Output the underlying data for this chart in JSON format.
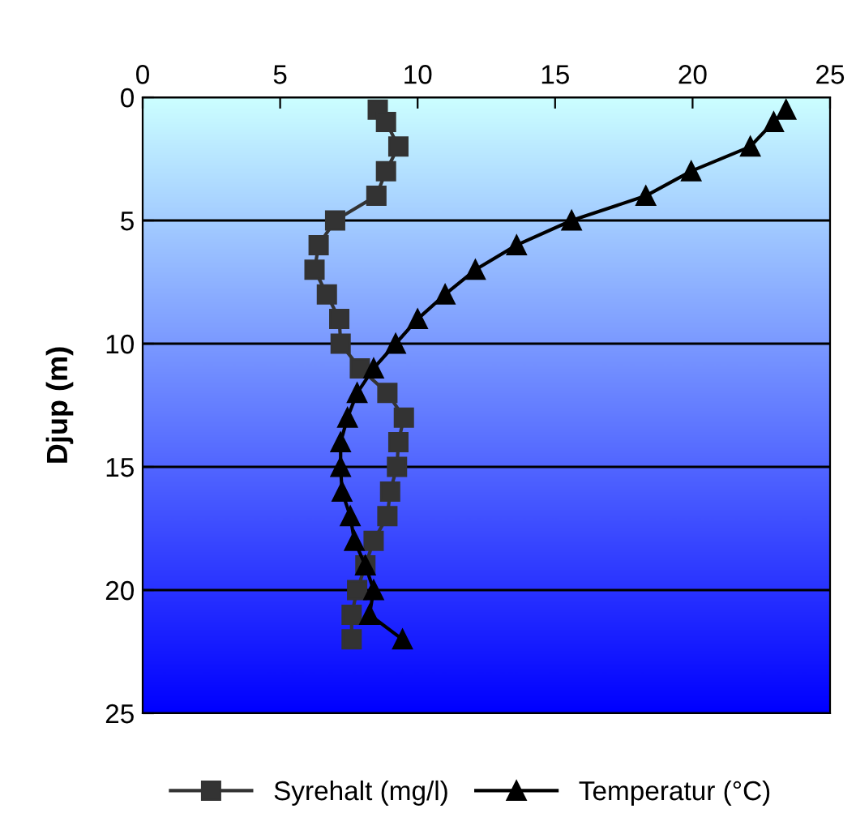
{
  "chart_data": {
    "type": "line",
    "ylabel": "Djup (m)",
    "xlim": [
      0,
      25
    ],
    "xticks": [
      0,
      5,
      10,
      15,
      20,
      25
    ],
    "ylim": [
      25,
      0
    ],
    "yticks": [
      0,
      5,
      10,
      15,
      20,
      25
    ],
    "grid": "y",
    "legend": "bottom",
    "line_style": "solid",
    "series": [
      {
        "name": "Syrehalt (mg/l)",
        "color": "#333333",
        "marker": "square",
        "x": [
          8.55,
          8.85,
          9.3,
          8.85,
          8.5,
          7.0,
          6.4,
          6.25,
          6.7,
          7.15,
          7.2,
          7.9,
          8.9,
          9.5,
          9.3,
          9.25,
          9.0,
          8.9,
          8.4,
          8.1,
          7.8,
          7.6,
          7.6
        ],
        "values": [
          0.5,
          1,
          2,
          3,
          4,
          5,
          6,
          7,
          8,
          9,
          10,
          11,
          12,
          13,
          14,
          15,
          16,
          17,
          18,
          19,
          20,
          21,
          22
        ]
      },
      {
        "name": "Temperatur (°C)",
        "color": "#000000",
        "marker": "triangle",
        "x": [
          23.4,
          22.95,
          22.1,
          19.95,
          18.3,
          15.6,
          13.6,
          12.1,
          11.0,
          10.0,
          9.2,
          8.4,
          7.8,
          7.45,
          7.2,
          7.2,
          7.25,
          7.55,
          7.7,
          8.1,
          8.4,
          8.25,
          9.45
        ],
        "values": [
          0.5,
          1,
          2,
          3,
          4,
          5,
          6,
          7,
          8,
          9,
          10,
          11,
          12,
          13,
          14,
          15,
          16,
          17,
          18,
          19,
          20,
          21,
          22
        ]
      }
    ]
  }
}
